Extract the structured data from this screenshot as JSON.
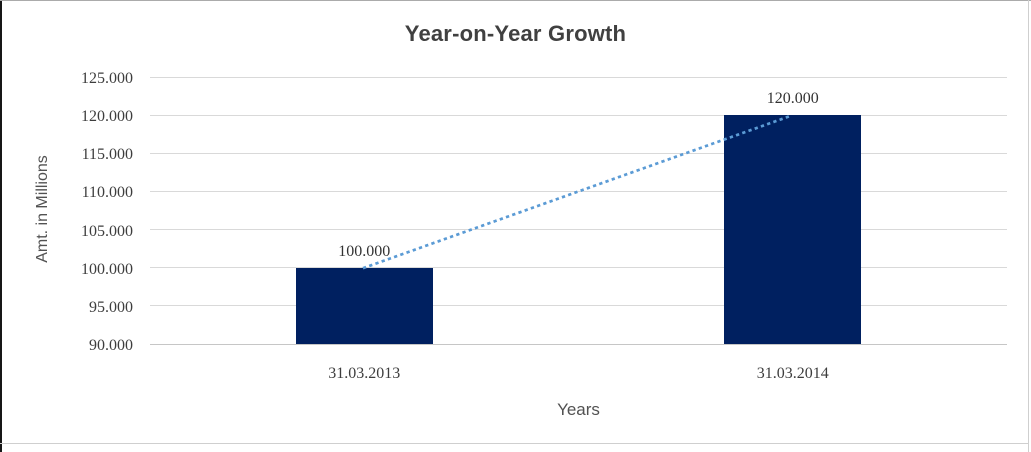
{
  "chart_data": {
    "type": "bar",
    "title": "Year-on-Year Growth",
    "categories": [
      "31.03.2013",
      "31.03.2014"
    ],
    "values": [
      100000,
      120000
    ],
    "data_labels": [
      "100.000",
      "120.000"
    ],
    "xlabel": "Years",
    "ylabel": "Amt. in Millions",
    "ylim": [
      90000,
      125000
    ],
    "ytick_step": 5000,
    "ytick_labels": [
      "90.000",
      "95.000",
      "100.000",
      "105.000",
      "110.000",
      "115.000",
      "120.000",
      "125.000"
    ],
    "grid": true,
    "legend": false,
    "bar_color": "#002060",
    "gridline_color": "#d9d9d9",
    "trendline": {
      "type": "linear",
      "style": "dotted",
      "color": "#5B9BD5",
      "from_value": 100000,
      "to_value": 120000
    }
  }
}
